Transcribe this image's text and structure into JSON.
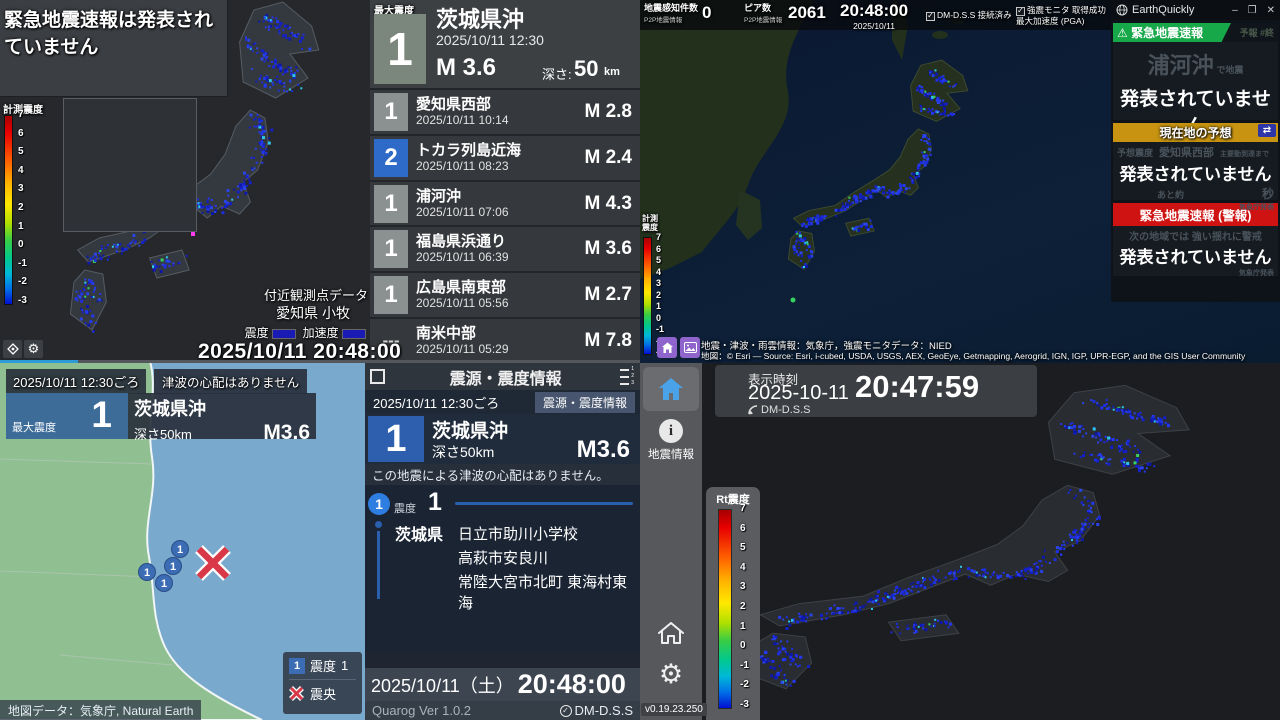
{
  "scale_ticks": [
    "7",
    "6",
    "5",
    "4",
    "3",
    "2",
    "1",
    "0",
    "-1",
    "-2",
    "-3"
  ],
  "colors": {
    "intensity_1_gray": "#8a9190",
    "intensity_2_blue": "#2e6bc8",
    "eew_green": "#17a849",
    "forecast_gold": "#c79310",
    "warning_red": "#cf1212",
    "monitor_dot_blue": "#1c2ee0",
    "epicenter_red": "#d83848"
  },
  "top_left": {
    "banner": "緊急地震速報は発表されていません",
    "scale_label": "計測震度",
    "max_label": "最大震度",
    "featured": {
      "intensity": "1",
      "name": "茨城県沖",
      "datetime": "2025/10/11 12:30",
      "magnitude": "M 3.6",
      "depth_label": "深さ:",
      "depth_value": "50",
      "depth_unit": "km"
    },
    "quakes": [
      {
        "intensity": "1",
        "name": "愛知県西部",
        "datetime": "2025/10/11 10:14",
        "magnitude": "M 2.8"
      },
      {
        "intensity": "2",
        "name": "トカラ列島近海",
        "datetime": "2025/10/11 08:23",
        "magnitude": "M 2.4"
      },
      {
        "intensity": "1",
        "name": "浦河沖",
        "datetime": "2025/10/11 07:06",
        "magnitude": "M 4.3"
      },
      {
        "intensity": "1",
        "name": "福島県浜通り",
        "datetime": "2025/10/11 06:39",
        "magnitude": "M 3.6"
      },
      {
        "intensity": "1",
        "name": "広島県南東部",
        "datetime": "2025/10/11 05:56",
        "magnitude": "M 2.7"
      },
      {
        "intensity": "---",
        "name": "南米中部",
        "datetime": "2025/10/11 05:29",
        "magnitude": "M 7.8"
      }
    ],
    "nearby_title": "付近観測点データ",
    "nearby_station": "愛知県 小牧",
    "shindo_label": "震度",
    "accel_label": "加速度",
    "timestamp": "2025/10/11 20:48:00"
  },
  "top_right": {
    "stat1_label": "地震感知件数",
    "stat1_sub": "P2P地震情報",
    "stat1_value": "0",
    "stat2_label": "ピア数",
    "stat2_sub": "P2P地震情報",
    "stat2_value": "2061",
    "clock_time": "20:48:00",
    "clock_date": "2025/10/11",
    "check1": "DM-D.S.S 接続済み",
    "check2_line1": "強震モニタ 取得成功",
    "check2_line2": "最大加速度 (PGA)",
    "scale_label_1": "計測",
    "scale_label_2": "震度",
    "attribution1": "地震・津波・雨雲情報：気象庁，強震モニタデータ：NIED",
    "attribution2": "地図：© Esri — Source: Esri, i-cubed, USDA, USGS, AEX, GeoEye, Getmapping, Aerogrid, IGN, IGP, UPR-EGP, and the GIS User Community",
    "window": {
      "title": "EarthQuickly",
      "minimize": "–",
      "maximize": "❐",
      "close": "✕",
      "eew_header": "緊急地震速報",
      "eew_tag": "予報 #終",
      "eew_region": "浦河沖",
      "eew_region_suffix": "で地震",
      "eew_status": "発表されていません",
      "forecast_header": "現在地の予想",
      "forecast_row_label": "予想震度",
      "forecast_row_value": "愛知県西部",
      "forecast_row_sub": "主要動到達まで",
      "forecast_status": "発表されていません",
      "forecast_eta_prefix": "あと約",
      "forecast_eta_unit": "秒",
      "forecast_source": "気象庁発表",
      "warning_header": "緊急地震速報 (警報)",
      "warning_sub": "次の地域では 強い揺れに警戒",
      "warning_status": "発表されていません",
      "warning_source": "気象庁発表"
    }
  },
  "bottom_left": {
    "datetime": "2025/10/11 12:30ごろ",
    "tsunami": "津波の心配はありません",
    "max_label": "最大震度",
    "intensity": "1",
    "name": "茨城県沖",
    "depth": "深さ50km",
    "magnitude": "M3.6",
    "marker_label": "1",
    "legend_intensity": "1",
    "legend_shindo": "震度",
    "legend_value": "1",
    "legend_epicenter": "震央",
    "attribution": "地図データ：気象庁, Natural Earth"
  },
  "bottom_center": {
    "title": "震源・震度情報",
    "datetime": "2025/10/11 12:30ごろ",
    "badge": "震源・震度情報",
    "intensity": "1",
    "name": "茨城県沖",
    "depth": "深さ50km",
    "magnitude": "M3.6",
    "notice": "この地震による津波の心配はありません。",
    "group_icon": "1",
    "group_label": "震度",
    "group_value": "1",
    "pref": "茨城県",
    "stations": [
      "日立市助川小学校",
      "高萩市安良川",
      "常陸大宮市北町 東海村東海"
    ],
    "footer_date": "2025/10/11（土）",
    "footer_time": "20:48:00",
    "footer_app": "Quarog Ver 1.0.2",
    "footer_source": "DM-D.S.S"
  },
  "bottom_right": {
    "time_label": "表示時刻",
    "date": "2025-10-11",
    "time": "20:47:59",
    "source": "DM-D.S.S",
    "nav_info": "地震情報",
    "scale_label": "Rt震度",
    "version": "v0.19.23.250"
  }
}
